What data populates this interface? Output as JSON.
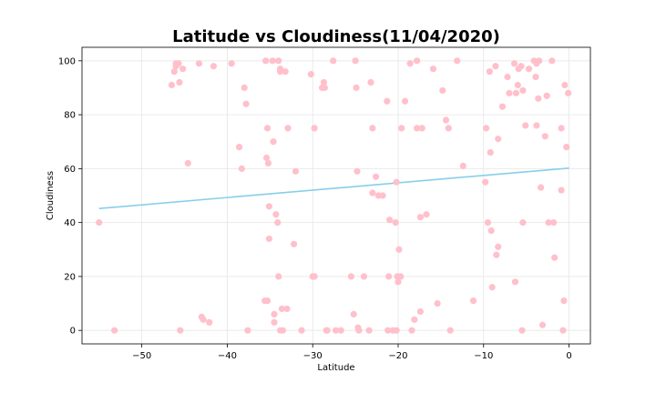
{
  "chart_data": {
    "type": "scatter",
    "title": "Latitude vs Cloudiness(11/04/2020)",
    "xlabel": "Latitude",
    "ylabel": "Cloudiness",
    "xlim": [
      -57,
      2.5
    ],
    "ylim": [
      -5,
      105
    ],
    "xticks": [
      -50,
      -40,
      -30,
      -20,
      -10,
      0
    ],
    "yticks": [
      0,
      20,
      40,
      60,
      80,
      100
    ],
    "grid": true,
    "colors": {
      "points": "#ffc0cb",
      "regression": "#87ceeb",
      "grid": "#e6e6e6",
      "axis": "#000000"
    },
    "regression_line": {
      "x": [
        -55,
        0
      ],
      "y": [
        45.2,
        60.2
      ]
    },
    "points": [
      [
        -55,
        40
      ],
      [
        -53.2,
        0
      ],
      [
        -46.5,
        91
      ],
      [
        -46.2,
        96
      ],
      [
        -46,
        98
      ],
      [
        -46,
        99
      ],
      [
        -45.7,
        99
      ],
      [
        -45.6,
        92
      ],
      [
        -45.5,
        0
      ],
      [
        -45.2,
        97
      ],
      [
        -44.6,
        62
      ],
      [
        -43.3,
        99
      ],
      [
        -43,
        5
      ],
      [
        -42.8,
        4
      ],
      [
        -42.1,
        3
      ],
      [
        -41.6,
        98
      ],
      [
        -39.5,
        99
      ],
      [
        -38.6,
        68
      ],
      [
        -38.3,
        60
      ],
      [
        -38,
        90
      ],
      [
        -37.8,
        84
      ],
      [
        -37.6,
        0
      ],
      [
        -35.6,
        11
      ],
      [
        -35.3,
        11
      ],
      [
        -35.5,
        100
      ],
      [
        -35.3,
        75
      ],
      [
        -35.4,
        64
      ],
      [
        -35.2,
        62
      ],
      [
        -35.1,
        46
      ],
      [
        -35.1,
        34
      ],
      [
        -34.7,
        100
      ],
      [
        -34.6,
        70
      ],
      [
        -34.5,
        6
      ],
      [
        -34.5,
        3
      ],
      [
        -34.3,
        43
      ],
      [
        -34.1,
        40
      ],
      [
        -34,
        20
      ],
      [
        -34,
        100
      ],
      [
        -33.8,
        97
      ],
      [
        -33.8,
        96
      ],
      [
        -33.6,
        8
      ],
      [
        -33.8,
        0
      ],
      [
        -33.5,
        0
      ],
      [
        -33.2,
        96
      ],
      [
        -33,
        8
      ],
      [
        -32.9,
        75
      ],
      [
        -32.2,
        32
      ],
      [
        -32,
        59
      ],
      [
        -31.3,
        0
      ],
      [
        -30.2,
        95
      ],
      [
        -30,
        20
      ],
      [
        -29.8,
        75
      ],
      [
        -29.8,
        20
      ],
      [
        -28.9,
        90
      ],
      [
        -28.7,
        92
      ],
      [
        -28.6,
        90
      ],
      [
        -28.4,
        0
      ],
      [
        -28.3,
        0
      ],
      [
        -27.6,
        100
      ],
      [
        -27.3,
        0
      ],
      [
        -26.7,
        0
      ],
      [
        -25.5,
        20
      ],
      [
        -25.2,
        6
      ],
      [
        -25,
        100
      ],
      [
        -24.9,
        90
      ],
      [
        -24.8,
        59
      ],
      [
        -24.7,
        1
      ],
      [
        -24.6,
        0
      ],
      [
        -24,
        20
      ],
      [
        -23.4,
        0
      ],
      [
        -23.2,
        92
      ],
      [
        -23,
        75
      ],
      [
        -23,
        51
      ],
      [
        -22.6,
        57
      ],
      [
        -22.3,
        50
      ],
      [
        -21.8,
        50
      ],
      [
        -21.3,
        85
      ],
      [
        -21.1,
        20
      ],
      [
        -21.2,
        0
      ],
      [
        -21,
        41
      ],
      [
        -20.6,
        0
      ],
      [
        -20.3,
        40
      ],
      [
        -20.2,
        55
      ],
      [
        -20.1,
        20
      ],
      [
        -20.2,
        0
      ],
      [
        -20,
        18
      ],
      [
        -19.9,
        30
      ],
      [
        -19.7,
        20
      ],
      [
        -19.6,
        75
      ],
      [
        -19.2,
        85
      ],
      [
        -18.6,
        99
      ],
      [
        -18.4,
        0
      ],
      [
        -18.1,
        4
      ],
      [
        -17.8,
        100
      ],
      [
        -17.8,
        75
      ],
      [
        -17.4,
        42
      ],
      [
        -17.4,
        7
      ],
      [
        -17.2,
        75
      ],
      [
        -16.7,
        43
      ],
      [
        -15.9,
        97
      ],
      [
        -15.4,
        10
      ],
      [
        -14.8,
        89
      ],
      [
        -14.4,
        78
      ],
      [
        -14.1,
        75
      ],
      [
        -13.9,
        0
      ],
      [
        -13.1,
        100
      ],
      [
        -12.4,
        61
      ],
      [
        -11.2,
        11
      ],
      [
        -9.8,
        55
      ],
      [
        -9.7,
        75
      ],
      [
        -9.5,
        40
      ],
      [
        -9.3,
        96
      ],
      [
        -9.2,
        66
      ],
      [
        -9.1,
        37
      ],
      [
        -9,
        16
      ],
      [
        -8.6,
        98
      ],
      [
        -8.5,
        28
      ],
      [
        -8.3,
        71
      ],
      [
        -8.3,
        31
      ],
      [
        -7.8,
        83
      ],
      [
        -7.2,
        94
      ],
      [
        -7,
        88
      ],
      [
        -6.4,
        99
      ],
      [
        -6.3,
        18
      ],
      [
        -6.2,
        88
      ],
      [
        -6,
        91
      ],
      [
        -5.9,
        97
      ],
      [
        -5.6,
        98
      ],
      [
        -5.5,
        0
      ],
      [
        -5.4,
        40
      ],
      [
        -5.4,
        89
      ],
      [
        -5.1,
        76
      ],
      [
        -4.7,
        97
      ],
      [
        -4.1,
        100
      ],
      [
        -3.9,
        94
      ],
      [
        -3.8,
        99
      ],
      [
        -3.8,
        76
      ],
      [
        -3.6,
        86
      ],
      [
        -3.5,
        100
      ],
      [
        -3.3,
        53
      ],
      [
        -3.1,
        2
      ],
      [
        -2.8,
        72
      ],
      [
        -2.6,
        87
      ],
      [
        -2.4,
        40
      ],
      [
        -2,
        100
      ],
      [
        -1.8,
        40
      ],
      [
        -1.7,
        27
      ],
      [
        -0.9,
        75
      ],
      [
        -0.9,
        52
      ],
      [
        -0.7,
        0
      ],
      [
        -0.6,
        11
      ],
      [
        -0.5,
        91
      ],
      [
        -0.3,
        68
      ],
      [
        -0.1,
        88
      ]
    ]
  }
}
